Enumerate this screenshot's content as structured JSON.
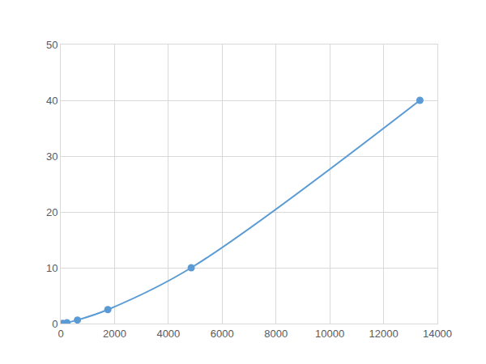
{
  "chart_data": {
    "type": "line",
    "x": [
      70,
      230,
      620,
      1750,
      4850,
      13350
    ],
    "values": [
      0.04,
      0.16,
      0.63,
      2.5,
      10,
      40
    ],
    "color": "#5b9bd5",
    "marker": "circle",
    "line_style": "solid",
    "xlim": [
      0,
      14000
    ],
    "xticks": [
      0,
      2000,
      4000,
      6000,
      8000,
      10000,
      12000,
      14000
    ],
    "ylim": [
      0,
      50
    ],
    "yticks": [
      0,
      10,
      20,
      30,
      40,
      50
    ],
    "grid": true
  }
}
